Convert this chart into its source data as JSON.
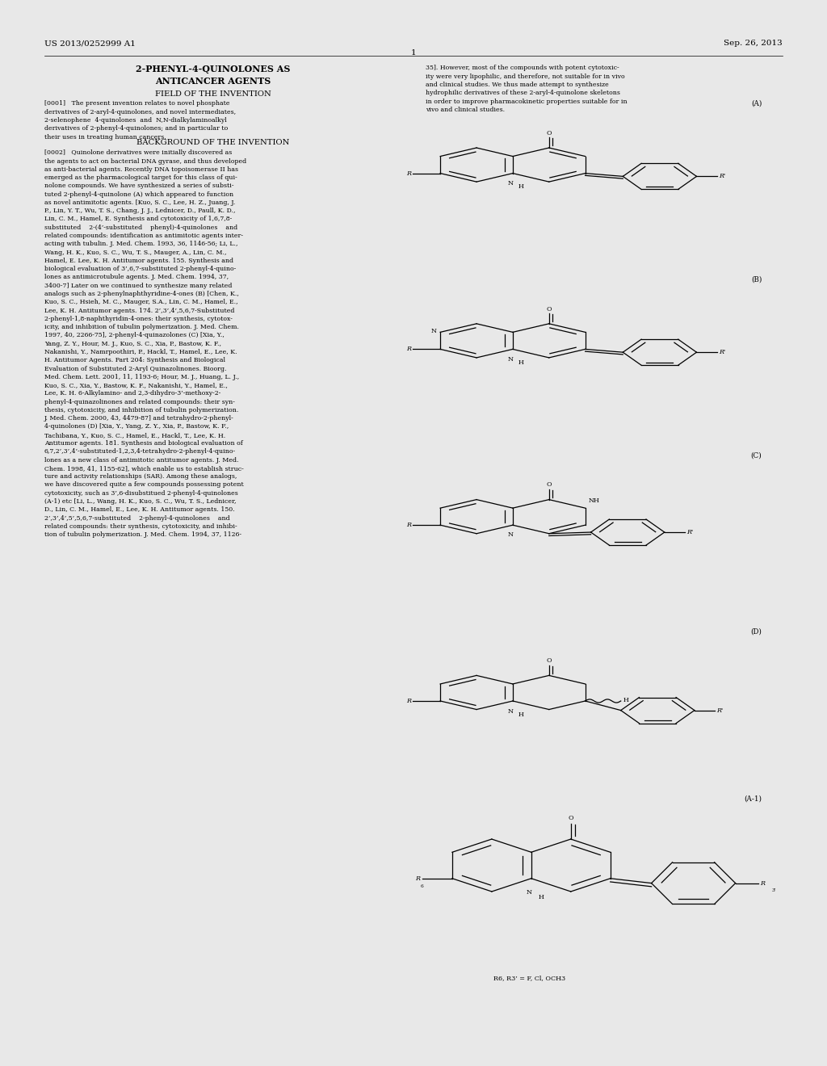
{
  "background_color": "#e8e8e8",
  "page_color": "#ffffff",
  "header_left": "US 2013/0252999 A1",
  "header_right": "Sep. 26, 2013",
  "page_number": "1",
  "title_line1": "2-PHENYL-4-QUINOLONES AS",
  "title_line2": "ANTICANCER AGENTS",
  "section1": "FIELD OF THE INVENTION",
  "section2": "BACKGROUND OF THE INVENTION",
  "label_A": "(A)",
  "label_B": "(B)",
  "label_C": "(C)",
  "label_D": "(D)",
  "label_A1": "(A-1)",
  "caption_A1": "R6, R3’ = F, Cl, OCH3"
}
